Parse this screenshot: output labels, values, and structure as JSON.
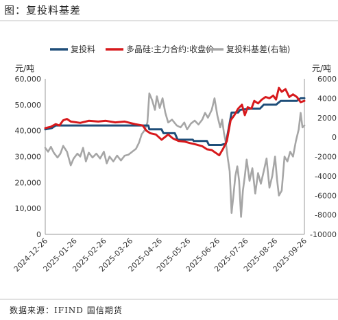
{
  "figure": {
    "title": "图：复投料基差",
    "source": "数据来源：IFIND 国信期货"
  },
  "chart_data": {
    "type": "line",
    "title": "",
    "y_left_unit": "元/吨",
    "y_right_unit": "元/吨",
    "y_left_range": [
      0,
      60000
    ],
    "y_right_range": [
      -10000,
      6000
    ],
    "y_left_ticks": [
      "0",
      "10,000",
      "20,000",
      "30,000",
      "40,000",
      "50,000",
      "60,000"
    ],
    "y_right_ticks": [
      "-10000",
      "-8000",
      "-6000",
      "-4000",
      "-2000",
      "0",
      "2000",
      "4000",
      "6000"
    ],
    "x_tick_labels": [
      "2024-12-26",
      "2025-01-26",
      "2025-02-26",
      "2025-03-26",
      "2025-04-26",
      "2025-05-26",
      "2025-06-26",
      "2025-07-26",
      "2025-08-26",
      "2025-09-26"
    ],
    "x_range": [
      "2024-12-26",
      "2025-09-26"
    ],
    "grid": false,
    "legend_position": "top",
    "series": [
      {
        "name": "复投料",
        "axis": "left",
        "color": "#1f4e79",
        "points": [
          [
            "2024-12-26",
            40500
          ],
          [
            "2025-01-02",
            41000
          ],
          [
            "2025-01-06",
            42000
          ],
          [
            "2025-02-28",
            42000
          ],
          [
            "2025-03-31",
            42000
          ],
          [
            "2025-04-14",
            42000
          ],
          [
            "2025-04-15",
            40500
          ],
          [
            "2025-04-28",
            40500
          ],
          [
            "2025-04-30",
            39000
          ],
          [
            "2025-05-12",
            39000
          ],
          [
            "2025-05-15",
            36500
          ],
          [
            "2025-05-31",
            36500
          ],
          [
            "2025-06-01",
            36000
          ],
          [
            "2025-06-15",
            36000
          ],
          [
            "2025-06-17",
            34500
          ],
          [
            "2025-06-30",
            34500
          ],
          [
            "2025-07-05",
            35000
          ],
          [
            "2025-07-11",
            47000
          ],
          [
            "2025-07-18",
            47000
          ],
          [
            "2025-07-20",
            48000
          ],
          [
            "2025-07-31",
            48500
          ],
          [
            "2025-08-10",
            48500
          ],
          [
            "2025-08-14",
            50000
          ],
          [
            "2025-08-27",
            50000
          ],
          [
            "2025-09-01",
            51500
          ],
          [
            "2025-09-18",
            51500
          ],
          [
            "2025-09-22",
            52500
          ],
          [
            "2025-09-26",
            52500
          ]
        ]
      },
      {
        "name": "多晶硅:主力合约:收盘价",
        "axis": "left",
        "color": "#d7191c",
        "points": [
          [
            "2024-12-26",
            41000
          ],
          [
            "2025-01-01",
            41500
          ],
          [
            "2025-01-06",
            42500
          ],
          [
            "2025-01-10",
            42000
          ],
          [
            "2025-01-14",
            44000
          ],
          [
            "2025-01-18",
            44500
          ],
          [
            "2025-01-22",
            43500
          ],
          [
            "2025-02-01",
            43000
          ],
          [
            "2025-02-10",
            43800
          ],
          [
            "2025-02-20",
            43500
          ],
          [
            "2025-02-28",
            43800
          ],
          [
            "2025-03-10",
            43200
          ],
          [
            "2025-03-20",
            43500
          ],
          [
            "2025-03-31",
            42500
          ],
          [
            "2025-04-08",
            42000
          ],
          [
            "2025-04-12",
            40000
          ],
          [
            "2025-04-16",
            39000
          ],
          [
            "2025-04-22",
            38500
          ],
          [
            "2025-04-28",
            36500
          ],
          [
            "2025-05-05",
            38500
          ],
          [
            "2025-05-10",
            37000
          ],
          [
            "2025-05-16",
            36000
          ],
          [
            "2025-05-22",
            35800
          ],
          [
            "2025-05-28",
            35200
          ],
          [
            "2025-06-04",
            34600
          ],
          [
            "2025-06-10",
            34000
          ],
          [
            "2025-06-15",
            32800
          ],
          [
            "2025-06-20",
            32500
          ],
          [
            "2025-06-24",
            31500
          ],
          [
            "2025-06-28",
            30500
          ],
          [
            "2025-07-02",
            33000
          ],
          [
            "2025-07-06",
            36000
          ],
          [
            "2025-07-08",
            40000
          ],
          [
            "2025-07-10",
            44000
          ],
          [
            "2025-07-14",
            46000
          ],
          [
            "2025-07-18",
            48500
          ],
          [
            "2025-07-22",
            50000
          ],
          [
            "2025-07-25",
            46000
          ],
          [
            "2025-07-28",
            49000
          ],
          [
            "2025-08-01",
            48500
          ],
          [
            "2025-08-04",
            51500
          ],
          [
            "2025-08-08",
            50500
          ],
          [
            "2025-08-12",
            52000
          ],
          [
            "2025-08-16",
            53000
          ],
          [
            "2025-08-20",
            52500
          ],
          [
            "2025-08-24",
            53500
          ],
          [
            "2025-08-27",
            52000
          ],
          [
            "2025-08-30",
            56500
          ],
          [
            "2025-09-02",
            55000
          ],
          [
            "2025-09-06",
            56000
          ],
          [
            "2025-09-10",
            53000
          ],
          [
            "2025-09-14",
            54000
          ],
          [
            "2025-09-18",
            53000
          ],
          [
            "2025-09-22",
            51000
          ],
          [
            "2025-09-26",
            51500
          ]
        ]
      },
      {
        "name": "复投料基差(右轴)",
        "axis": "right",
        "color": "#a6a6a6",
        "points": [
          [
            "2024-12-26",
            -1100
          ],
          [
            "2024-12-29",
            -1500
          ],
          [
            "2025-01-01",
            -1000
          ],
          [
            "2025-01-04",
            -1600
          ],
          [
            "2025-01-08",
            -2100
          ],
          [
            "2025-01-11",
            -1700
          ],
          [
            "2025-01-14",
            -900
          ],
          [
            "2025-01-18",
            -1500
          ],
          [
            "2025-01-22",
            -2900
          ],
          [
            "2025-01-25",
            -2200
          ],
          [
            "2025-01-29",
            -1700
          ],
          [
            "2025-02-01",
            -2000
          ],
          [
            "2025-02-04",
            -1100
          ],
          [
            "2025-02-07",
            -2500
          ],
          [
            "2025-02-10",
            -1600
          ],
          [
            "2025-02-14",
            -2100
          ],
          [
            "2025-02-18",
            -1700
          ],
          [
            "2025-02-22",
            -2200
          ],
          [
            "2025-02-26",
            -1500
          ],
          [
            "2025-03-01",
            -2700
          ],
          [
            "2025-03-04",
            -2000
          ],
          [
            "2025-03-08",
            -2500
          ],
          [
            "2025-03-12",
            -1900
          ],
          [
            "2025-03-16",
            -2400
          ],
          [
            "2025-03-20",
            -1900
          ],
          [
            "2025-03-24",
            -1800
          ],
          [
            "2025-03-28",
            -1500
          ],
          [
            "2025-04-01",
            -1200
          ],
          [
            "2025-04-04",
            -600
          ],
          [
            "2025-04-07",
            300
          ],
          [
            "2025-04-10",
            700
          ],
          [
            "2025-04-13",
            1500
          ],
          [
            "2025-04-15",
            4500
          ],
          [
            "2025-04-18",
            3800
          ],
          [
            "2025-04-21",
            2800
          ],
          [
            "2025-04-23",
            4200
          ],
          [
            "2025-04-26",
            3000
          ],
          [
            "2025-04-29",
            4000
          ],
          [
            "2025-05-02",
            2500
          ],
          [
            "2025-05-05",
            1500
          ],
          [
            "2025-05-09",
            1800
          ],
          [
            "2025-05-14",
            1200
          ],
          [
            "2025-05-18",
            1000
          ],
          [
            "2025-05-22",
            1500
          ],
          [
            "2025-05-25",
            800
          ],
          [
            "2025-05-29",
            1400
          ],
          [
            "2025-06-02",
            1700
          ],
          [
            "2025-06-06",
            1300
          ],
          [
            "2025-06-10",
            1800
          ],
          [
            "2025-06-13",
            2500
          ],
          [
            "2025-06-16",
            2000
          ],
          [
            "2025-06-20",
            2800
          ],
          [
            "2025-06-23",
            4000
          ],
          [
            "2025-06-26",
            2200
          ],
          [
            "2025-06-29",
            1000
          ],
          [
            "2025-07-01",
            1800
          ],
          [
            "2025-07-03",
            400
          ],
          [
            "2025-07-05",
            -600
          ],
          [
            "2025-07-07",
            -2200
          ],
          [
            "2025-07-09",
            -3500
          ],
          [
            "2025-07-11",
            -7800
          ],
          [
            "2025-07-13",
            -6000
          ],
          [
            "2025-07-15",
            -4000
          ],
          [
            "2025-07-17",
            -3000
          ],
          [
            "2025-07-19",
            -4500
          ],
          [
            "2025-07-21",
            -8200
          ],
          [
            "2025-07-23",
            -5500
          ],
          [
            "2025-07-25",
            -4000
          ],
          [
            "2025-07-27",
            -2300
          ],
          [
            "2025-07-30",
            -4500
          ],
          [
            "2025-08-02",
            -3200
          ],
          [
            "2025-08-05",
            -5800
          ],
          [
            "2025-08-08",
            -3700
          ],
          [
            "2025-08-11",
            -4800
          ],
          [
            "2025-08-14",
            -3500
          ],
          [
            "2025-08-17",
            -2200
          ],
          [
            "2025-08-20",
            -5200
          ],
          [
            "2025-08-23",
            -4000
          ],
          [
            "2025-08-26",
            -2000
          ],
          [
            "2025-08-28",
            -4300
          ],
          [
            "2025-08-30",
            -6000
          ],
          [
            "2025-09-02",
            -5500
          ],
          [
            "2025-09-05",
            -2000
          ],
          [
            "2025-09-08",
            -2500
          ],
          [
            "2025-09-11",
            -1500
          ],
          [
            "2025-09-14",
            -2000
          ],
          [
            "2025-09-17",
            -400
          ],
          [
            "2025-09-20",
            800
          ],
          [
            "2025-09-22",
            2500
          ],
          [
            "2025-09-24",
            1000
          ],
          [
            "2025-09-26",
            1200
          ]
        ]
      }
    ]
  }
}
